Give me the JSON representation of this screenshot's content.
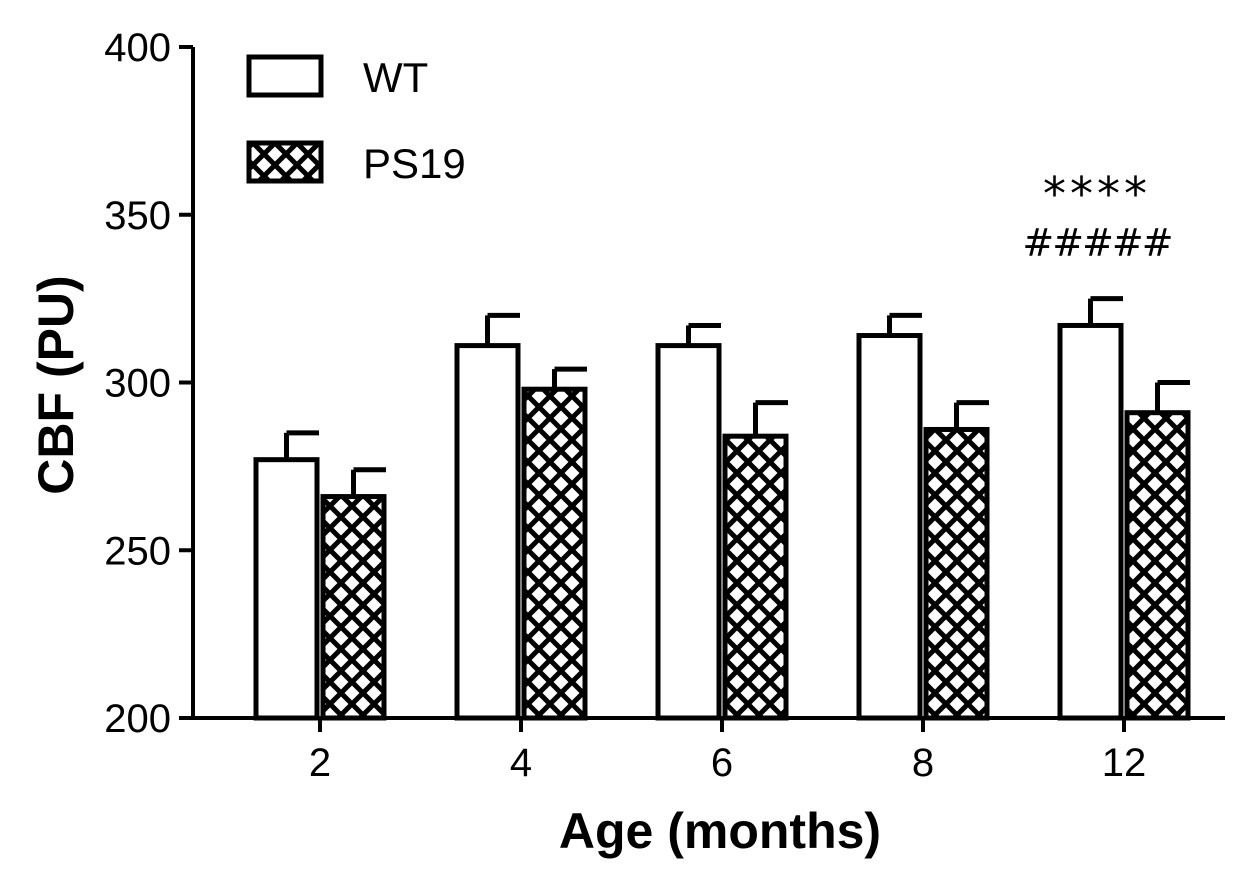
{
  "chart_data": {
    "type": "bar",
    "title": "",
    "xlabel": "Age (months)",
    "ylabel": "CBF (PU)",
    "ylim": [
      200,
      400
    ],
    "yticks": [
      200,
      250,
      300,
      350,
      400
    ],
    "categories": [
      "2",
      "4",
      "6",
      "8",
      "12"
    ],
    "series": [
      {
        "name": "WT",
        "values": [
          277,
          311,
          311,
          314,
          317
        ],
        "errors": [
          8,
          9,
          6,
          6,
          8
        ],
        "fill": "open"
      },
      {
        "name": "PS19",
        "values": [
          266,
          298,
          284,
          286,
          291
        ],
        "errors": [
          8,
          6,
          10,
          8,
          9
        ],
        "fill": "crosshatch"
      }
    ],
    "legend": "top-left",
    "annotations": [
      {
        "category": "12",
        "text": "****"
      },
      {
        "category": "12",
        "text": "#####"
      }
    ],
    "colors": {
      "stroke": "#000000",
      "background": "#ffffff"
    }
  }
}
